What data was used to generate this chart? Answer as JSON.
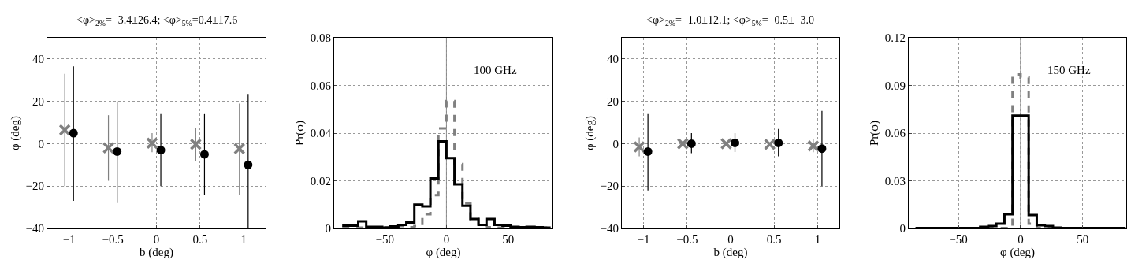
{
  "chart_data": [
    {
      "type": "scatter",
      "title": "<φ>$_{2%}$=−3.4±26.4; <φ>$_{5%}$=0.4±17.6",
      "xlabel": "b (deg)",
      "ylabel": "φ (deg)",
      "xlim": [
        -1.25,
        1.25
      ],
      "xticks": [
        -1,
        -0.5,
        0,
        0.5,
        1
      ],
      "ylim": [
        -40,
        50
      ],
      "yticks": [
        -40,
        -20,
        0,
        20,
        40
      ],
      "grid": true,
      "series": [
        {
          "color": "#808080",
          "marker": "cross",
          "x": [
            -1.05,
            -0.55,
            -0.05,
            0.45,
            0.95
          ],
          "values": [
            6.5,
            -2,
            0.3,
            -0.3,
            -2.3
          ],
          "errors": [
            [
              -20,
              33
            ],
            [
              -17.5,
              13.5
            ],
            [
              -4,
              5
            ],
            [
              -8,
              7.5
            ],
            [
              -24,
              19
            ]
          ]
        },
        {
          "color": "#000000",
          "marker": "circle",
          "x": [
            -0.95,
            -0.45,
            0.05,
            0.55,
            1.05
          ],
          "values": [
            5,
            -3.7,
            -3,
            -5,
            -10
          ],
          "errors": [
            [
              -27,
              36.5
            ],
            [
              -28,
              20
            ],
            [
              -20,
              14
            ],
            [
              -24,
              14
            ],
            [
              -40,
              23.5
            ]
          ]
        }
      ]
    },
    {
      "type": "histogram",
      "xlabel": "φ (deg)",
      "ylabel": "Pr(φ)",
      "xlim": [
        -91,
        86
      ],
      "xticks": [
        -50,
        0,
        50
      ],
      "ylim": [
        0,
        0.08
      ],
      "yticks": [
        0,
        0.02,
        0.04,
        0.06,
        0.08
      ],
      "grid": true,
      "annotations": [
        "100 GHz"
      ],
      "bins": [
        -84.5,
        -78,
        -71.5,
        -65,
        -58.5,
        -52,
        -45.5,
        -39,
        -32.5,
        -26,
        -19.5,
        -13,
        -6.5,
        0,
        6.5,
        13,
        19.5,
        26,
        32.5,
        39,
        45.5,
        52,
        58.5,
        65,
        71.5,
        78,
        84.5
      ],
      "ref_lines": [
        {
          "axis": "x",
          "value": 0,
          "color": "#808080"
        }
      ],
      "series": [
        {
          "color": "#808080",
          "line_style": "dashed",
          "values": [
            0.0003,
            0.0003,
            0.0003,
            0.0003,
            0.0003,
            0.0005,
            0.0008,
            0.001,
            0.0005,
            0.001,
            0.006,
            0.014,
            0.042,
            0.0535,
            0.027,
            0.0105,
            0.004,
            0.001,
            0.0005,
            0.0003,
            0.0003,
            0.0003,
            0.0003,
            0.0003,
            0.0003,
            0.0003
          ]
        },
        {
          "color": "#000000",
          "line_style": "solid",
          "values": [
            0.0012,
            0.0012,
            0.003,
            0.0007,
            0.0007,
            0.0003,
            0.0008,
            0.0015,
            0.0025,
            0.01,
            0.0093,
            0.021,
            0.0365,
            0.0295,
            0.0185,
            0.0095,
            0.004,
            0.0015,
            0.004,
            0.0015,
            0.0012,
            0.0007,
            0.0005,
            0.0007,
            0.0005,
            0.0003
          ]
        }
      ]
    },
    {
      "type": "scatter",
      "title": "<φ>$_{2%}$=−1.0±12.1; <φ>$_{5%}$=−0.5±−3.0",
      "xlabel": "b (deg)",
      "ylabel": "φ (deg)",
      "xlim": [
        -1.25,
        1.25
      ],
      "xticks": [
        -1,
        -0.5,
        0,
        0.5,
        1
      ],
      "ylim": [
        -40,
        50
      ],
      "yticks": [
        -40,
        -20,
        0,
        20,
        40
      ],
      "grid": true,
      "series": [
        {
          "color": "#808080",
          "marker": "cross",
          "x": [
            -1.05,
            -0.55,
            -0.05,
            0.45,
            0.95
          ],
          "values": [
            -1.5,
            0,
            0,
            -0.3,
            -1
          ],
          "errors": [
            [
              -6,
              3
            ],
            null,
            null,
            null,
            [
              -4,
              2
            ]
          ]
        },
        {
          "color": "#000000",
          "marker": "circle",
          "x": [
            -0.95,
            -0.45,
            0.05,
            0.55,
            1.05
          ],
          "values": [
            -3.7,
            0,
            0.4,
            0.4,
            -2.3
          ],
          "errors": [
            [
              -22,
              14
            ],
            [
              -4.5,
              5
            ],
            [
              -4,
              5
            ],
            [
              -6,
              7
            ],
            [
              -20,
              15.5
            ]
          ]
        }
      ]
    },
    {
      "type": "histogram",
      "xlabel": "φ (deg)",
      "ylabel": "Pr(φ)",
      "xlim": [
        -90,
        85
      ],
      "xticks": [
        -50,
        0,
        50
      ],
      "ylim": [
        0,
        0.12
      ],
      "yticks": [
        0,
        0.03,
        0.06,
        0.09,
        0.12
      ],
      "grid": true,
      "annotations": [
        "150 GHz"
      ],
      "bins": [
        -84.5,
        -78,
        -71.5,
        -65,
        -58.5,
        -52,
        -45.5,
        -39,
        -32.5,
        -26,
        -19.5,
        -13,
        -6.5,
        0,
        6.5,
        13,
        19.5,
        26,
        32.5,
        39,
        45.5,
        52,
        58.5,
        65,
        71.5,
        78,
        84.5
      ],
      "ref_lines": [
        {
          "axis": "x",
          "value": 0,
          "color": "#808080"
        }
      ],
      "series": [
        {
          "color": "#808080",
          "line_style": "dashed",
          "values": [
            0.0003,
            0.0003,
            0.0003,
            0.0003,
            0.0003,
            0.0003,
            0.0003,
            0.0003,
            0.0003,
            0.0003,
            0.0003,
            0.0003,
            0.097,
            0.095,
            0.003,
            0.0003,
            0.0003,
            0.0003,
            0.0003,
            0.0003,
            0.0003,
            0.0003,
            0.0003,
            0.0003,
            0.0003,
            0.0003
          ]
        },
        {
          "color": "#000000",
          "line_style": "solid",
          "values": [
            0.0003,
            0.0003,
            0.0003,
            0.0003,
            0.0003,
            0.0003,
            0.0003,
            0.0003,
            0.001,
            0.0015,
            0.003,
            0.009,
            0.071,
            0.071,
            0.0085,
            0.002,
            0.0015,
            0.0005,
            0.0003,
            0.0003,
            0.0003,
            0.0003,
            0.0003,
            0.0003,
            0.0003,
            0.0003
          ]
        }
      ]
    }
  ]
}
